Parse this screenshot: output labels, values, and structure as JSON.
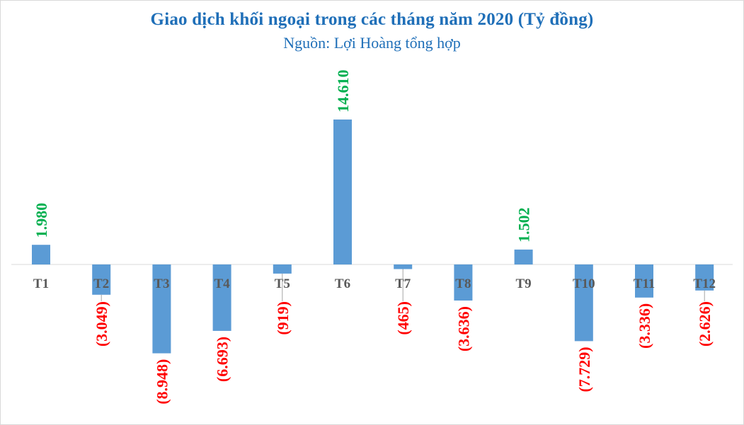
{
  "chart_data": {
    "type": "bar",
    "title": "Giao dịch khối ngoại trong các tháng năm 2020 (Tỷ đồng)",
    "subtitle": "Nguồn: Lợi Hoàng tổng hợp",
    "categories": [
      "T1",
      "T2",
      "T3",
      "T4",
      "T5",
      "T6",
      "T7",
      "T8",
      "T9",
      "T10",
      "T11",
      "T12"
    ],
    "values": [
      1980,
      -3049,
      -8948,
      -6693,
      -919,
      14610,
      -465,
      -3636,
      1502,
      -7729,
      -3336,
      -2626
    ],
    "value_labels": [
      "1.980",
      "(3.049)",
      "(8.948)",
      "(6.693)",
      "(919)",
      "14.610",
      "(465)",
      "(3.636)",
      "1.502",
      "(7.729)",
      "(3.336)",
      "(2.626)"
    ],
    "ylim": [
      -8948,
      14610
    ],
    "grid": false,
    "legend": "none",
    "bar_color": "#5b9bd5",
    "positive_label_color": "#00b050",
    "negative_label_color": "#ff0000",
    "category_label_color": "#595959"
  }
}
